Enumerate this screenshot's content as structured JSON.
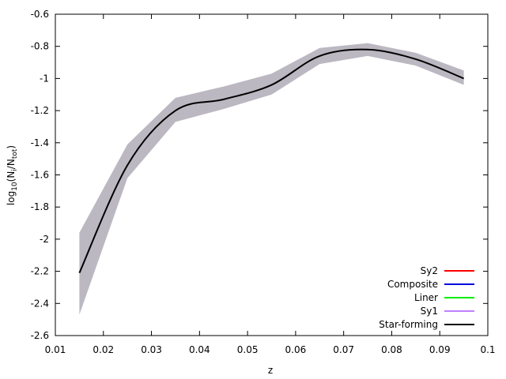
{
  "chart_data": {
    "type": "line",
    "xlabel": "z",
    "ylabel_parts": [
      {
        "text": "log"
      },
      {
        "text": "10",
        "sub": true
      },
      {
        "text": "(N"
      },
      {
        "text": "i",
        "sub": true
      },
      {
        "text": "/N"
      },
      {
        "text": "tot",
        "sub": true
      },
      {
        "text": ")"
      }
    ],
    "x": [
      0.015,
      0.025,
      0.035,
      0.045,
      0.055,
      0.065,
      0.075,
      0.085,
      0.095
    ],
    "xlim": [
      0.01,
      0.1
    ],
    "xticks": [
      0.01,
      0.02,
      0.03,
      0.04,
      0.05,
      0.06,
      0.07,
      0.08,
      0.09,
      0.1
    ],
    "ylim": [
      -2.6,
      -0.6
    ],
    "yticks": [
      -2.6,
      -2.4,
      -2.2,
      -2,
      -1.8,
      -1.6,
      -1.4,
      -1.2,
      -1,
      -0.8,
      -0.6
    ],
    "legend": "bottom-right",
    "band_color": "#bbb8c2",
    "series": [
      {
        "name": "Sy2",
        "color": "#ff0000",
        "values": [
          null,
          null,
          null,
          null,
          null,
          null,
          null,
          null,
          null
        ]
      },
      {
        "name": "Composite",
        "color": "#0000dd",
        "values": [
          null,
          null,
          null,
          null,
          null,
          null,
          null,
          null,
          null
        ]
      },
      {
        "name": "Liner",
        "color": "#00ee00",
        "values": [
          null,
          null,
          null,
          null,
          null,
          null,
          null,
          null,
          null
        ]
      },
      {
        "name": "Sy1",
        "color": "#c080ff",
        "values": [
          null,
          null,
          null,
          null,
          null,
          null,
          null,
          null,
          null
        ]
      },
      {
        "name": "Star-forming",
        "color": "#000000",
        "values": [
          -2.21,
          -1.54,
          -1.2,
          -1.13,
          -1.04,
          -0.86,
          -0.82,
          -0.88,
          -1.0
        ],
        "upper": [
          -1.96,
          -1.41,
          -1.12,
          -1.05,
          -0.97,
          -0.81,
          -0.78,
          -0.84,
          -0.95
        ],
        "lower": [
          -2.47,
          -1.62,
          -1.27,
          -1.19,
          -1.1,
          -0.91,
          -0.86,
          -0.92,
          -1.04
        ]
      }
    ]
  }
}
